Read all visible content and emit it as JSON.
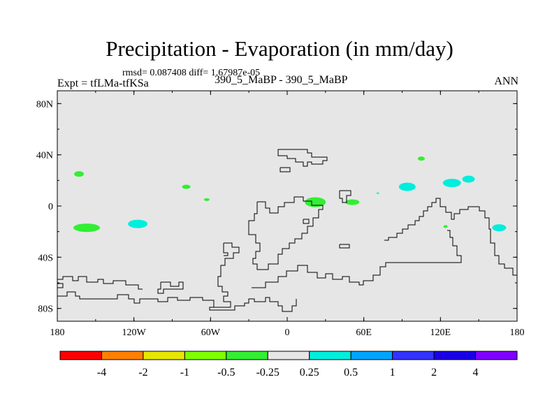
{
  "chart_data": {
    "type": "heatmap",
    "title": "Precipitation - Evaporation (in mm/day)",
    "stats_text": "rmsd= 0.087408 diff= 1.67987e-05",
    "left_label": "Expt = tfLMa-tfKSa",
    "center_label": "390_5_MaBP - 390_5_MaBP",
    "right_label": "ANN",
    "x_ticks": [
      "180",
      "120W",
      "60W",
      "0",
      "60E",
      "120E",
      "180"
    ],
    "y_ticks": [
      "80N",
      "40N",
      "0",
      "40S",
      "80S"
    ],
    "lon_range": [
      -180,
      180
    ],
    "lat_range": [
      -90,
      90
    ],
    "colorbar": {
      "colors": [
        "#ff0000",
        "#ff8000",
        "#e6e600",
        "#80ff00",
        "#33ee33",
        "#e6e6e6",
        "#00eedd",
        "#00a5ff",
        "#3333ff",
        "#1a00e6",
        "#8000ff"
      ],
      "labels": [
        "-4",
        "-2",
        "-1",
        "-0.5",
        "-0.25",
        "0.25",
        "0.5",
        "1",
        "2",
        "4"
      ]
    },
    "background_value_color": "#e6e6e6",
    "anomaly_patches": [
      {
        "lon": -163,
        "lat": 25,
        "color": "#33ee33"
      },
      {
        "lon": -79,
        "lat": 15,
        "color": "#33ee33"
      },
      {
        "lon": -63,
        "lat": 5,
        "color": "#33ee33"
      },
      {
        "lon": -157,
        "lat": -17,
        "color": "#33ee33"
      },
      {
        "lon": -117,
        "lat": -14,
        "color": "#00eedd"
      },
      {
        "lon": 22,
        "lat": 3,
        "color": "#33ee33"
      },
      {
        "lon": 51,
        "lat": 3,
        "color": "#33ee33"
      },
      {
        "lon": 71,
        "lat": 10,
        "color": "#00eedd"
      },
      {
        "lon": 94,
        "lat": 15,
        "color": "#00eedd"
      },
      {
        "lon": 105,
        "lat": 37,
        "color": "#33ee33"
      },
      {
        "lon": 129,
        "lat": 18,
        "color": "#00eedd"
      },
      {
        "lon": 142,
        "lat": 21,
        "color": "#00eedd"
      },
      {
        "lon": 166,
        "lat": -17,
        "color": "#00eedd"
      },
      {
        "lon": 124,
        "lat": -16,
        "color": "#33ee33"
      }
    ]
  }
}
